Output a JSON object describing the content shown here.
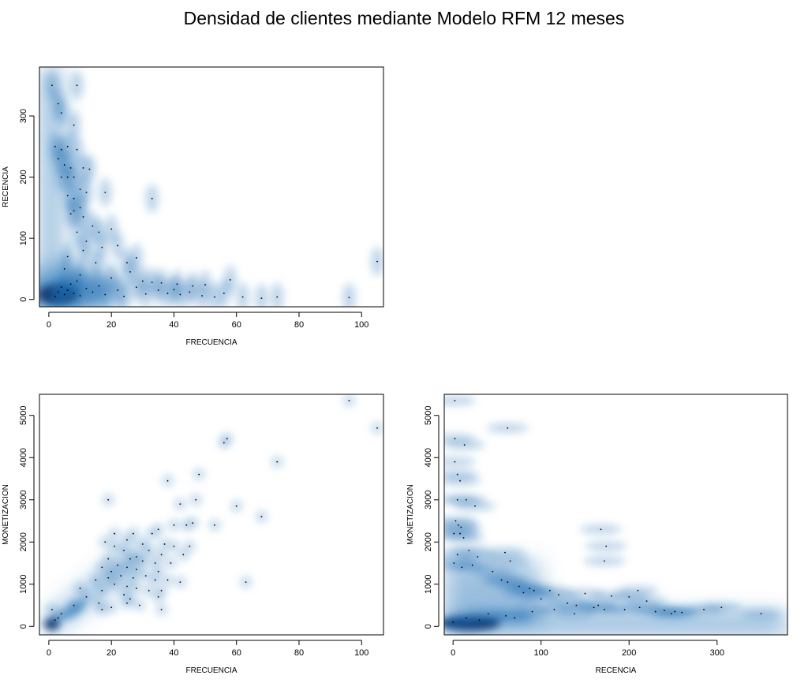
{
  "title": "Densidad de clientes mediante Modelo RFM 12 meses",
  "colors": {
    "density_dark": "#08306b",
    "density_mid": "#2171b5",
    "density_light": "#c6dbef",
    "point": "#000000"
  },
  "chart_data": [
    {
      "type": "scatter",
      "style": "smoothed-density",
      "xlabel": "FRECUENCIA",
      "ylabel": "RECENCIA",
      "xlim": [
        -3,
        107
      ],
      "ylim": [
        -12,
        380
      ],
      "xticks": [
        0,
        20,
        40,
        60,
        80,
        100
      ],
      "yticks": [
        0,
        100,
        200,
        300
      ],
      "points": [
        [
          1,
          350
        ],
        [
          3,
          320
        ],
        [
          4,
          305
        ],
        [
          9,
          350
        ],
        [
          8,
          285
        ],
        [
          2,
          250
        ],
        [
          4,
          245
        ],
        [
          6,
          250
        ],
        [
          9,
          245
        ],
        [
          3,
          230
        ],
        [
          5,
          220
        ],
        [
          7,
          215
        ],
        [
          11,
          215
        ],
        [
          13,
          213
        ],
        [
          6,
          200
        ],
        [
          8,
          200
        ],
        [
          4,
          200
        ],
        [
          10,
          180
        ],
        [
          12,
          175
        ],
        [
          18,
          175
        ],
        [
          6,
          170
        ],
        [
          8,
          165
        ],
        [
          33,
          165
        ],
        [
          10,
          150
        ],
        [
          8,
          145
        ],
        [
          11,
          135
        ],
        [
          7,
          140
        ],
        [
          14,
          120
        ],
        [
          16,
          110
        ],
        [
          9,
          110
        ],
        [
          20,
          115
        ],
        [
          12,
          95
        ],
        [
          17,
          85
        ],
        [
          22,
          88
        ],
        [
          11,
          80
        ],
        [
          6,
          70
        ],
        [
          15,
          60
        ],
        [
          25,
          60
        ],
        [
          28,
          68
        ],
        [
          5,
          50
        ],
        [
          10,
          40
        ],
        [
          20,
          35
        ],
        [
          26,
          45
        ],
        [
          30,
          30
        ],
        [
          33,
          28
        ],
        [
          36,
          27
        ],
        [
          41,
          25
        ],
        [
          46,
          22
        ],
        [
          50,
          24
        ],
        [
          58,
          32
        ],
        [
          35,
          15
        ],
        [
          38,
          10
        ],
        [
          42,
          8
        ],
        [
          45,
          12
        ],
        [
          49,
          6
        ],
        [
          53,
          4
        ],
        [
          56,
          10
        ],
        [
          62,
          4
        ],
        [
          68,
          2
        ],
        [
          73,
          4
        ],
        [
          96,
          3
        ],
        [
          105,
          62
        ],
        [
          2,
          5
        ],
        [
          3,
          12
        ],
        [
          4,
          20
        ],
        [
          5,
          8
        ],
        [
          6,
          15
        ],
        [
          7,
          25
        ],
        [
          8,
          10
        ],
        [
          9,
          30
        ],
        [
          10,
          6
        ],
        [
          12,
          18
        ],
        [
          14,
          12
        ],
        [
          16,
          22
        ],
        [
          18,
          8
        ],
        [
          22,
          15
        ],
        [
          24,
          5
        ],
        [
          28,
          20
        ],
        [
          31,
          9
        ],
        [
          40,
          16
        ]
      ]
    },
    {
      "type": "scatter",
      "style": "smoothed-density",
      "xlabel": "FRECUENCIA",
      "ylabel": "MONETIZACION",
      "xlim": [
        -3,
        107
      ],
      "ylim": [
        -200,
        5500
      ],
      "xticks": [
        0,
        20,
        40,
        60,
        80,
        100
      ],
      "yticks": [
        0,
        1000,
        2000,
        3000,
        4000,
        5000
      ],
      "points": [
        [
          96,
          5350
        ],
        [
          105,
          4700
        ],
        [
          57,
          4450
        ],
        [
          56,
          4350
        ],
        [
          73,
          3900
        ],
        [
          38,
          3450
        ],
        [
          48,
          3600
        ],
        [
          19,
          3000
        ],
        [
          47,
          3000
        ],
        [
          42,
          2900
        ],
        [
          60,
          2850
        ],
        [
          68,
          2600
        ],
        [
          53,
          2400
        ],
        [
          44,
          2400
        ],
        [
          46,
          2450
        ],
        [
          40,
          2400
        ],
        [
          35,
          2300
        ],
        [
          33,
          2200
        ],
        [
          27,
          2200
        ],
        [
          21,
          2200
        ],
        [
          25,
          2050
        ],
        [
          18,
          2000
        ],
        [
          21,
          1900
        ],
        [
          30,
          1950
        ],
        [
          37,
          1950
        ],
        [
          40,
          1900
        ],
        [
          45,
          1900
        ],
        [
          24,
          1800
        ],
        [
          32,
          1800
        ],
        [
          36,
          1700
        ],
        [
          43,
          1700
        ],
        [
          28,
          1650
        ],
        [
          19,
          1600
        ],
        [
          26,
          1600
        ],
        [
          30,
          1550
        ],
        [
          34,
          1500
        ],
        [
          39,
          1500
        ],
        [
          22,
          1450
        ],
        [
          17,
          1400
        ],
        [
          25,
          1400
        ],
        [
          28,
          1350
        ],
        [
          35,
          1300
        ],
        [
          20,
          1300
        ],
        [
          31,
          1200
        ],
        [
          23,
          1200
        ],
        [
          19,
          1150
        ],
        [
          27,
          1150
        ],
        [
          15,
          1100
        ],
        [
          34,
          1100
        ],
        [
          38,
          1100
        ],
        [
          42,
          1050
        ],
        [
          63,
          1050
        ],
        [
          21,
          1000
        ],
        [
          25,
          950
        ],
        [
          28,
          900
        ],
        [
          32,
          850
        ],
        [
          17,
          850
        ],
        [
          36,
          850
        ],
        [
          24,
          750
        ],
        [
          35,
          700
        ],
        [
          26,
          650
        ],
        [
          16,
          550
        ],
        [
          25,
          550
        ],
        [
          20,
          450
        ],
        [
          17,
          400
        ],
        [
          36,
          400
        ],
        [
          29,
          500
        ],
        [
          10,
          900
        ],
        [
          1,
          400
        ],
        [
          4,
          300
        ],
        [
          8,
          500
        ],
        [
          12,
          700
        ],
        [
          3,
          200
        ],
        [
          2,
          150
        ]
      ]
    },
    {
      "type": "scatter",
      "style": "smoothed-density",
      "xlabel": "RECENCIA",
      "ylabel": "MONETIZACION",
      "xlim": [
        -10,
        380
      ],
      "ylim": [
        -200,
        5500
      ],
      "xticks": [
        0,
        100,
        200,
        300
      ],
      "yticks": [
        0,
        1000,
        2000,
        3000,
        4000,
        5000
      ],
      "points": [
        [
          2,
          5350
        ],
        [
          62,
          4700
        ],
        [
          2,
          4450
        ],
        [
          13,
          4300
        ],
        [
          2,
          3900
        ],
        [
          5,
          3600
        ],
        [
          8,
          3450
        ],
        [
          5,
          3000
        ],
        [
          15,
          3000
        ],
        [
          25,
          2850
        ],
        [
          3,
          2500
        ],
        [
          6,
          2400
        ],
        [
          9,
          2350
        ],
        [
          168,
          2300
        ],
        [
          1,
          2200
        ],
        [
          8,
          2200
        ],
        [
          12,
          2100
        ],
        [
          174,
          1900
        ],
        [
          18,
          1800
        ],
        [
          59,
          1750
        ],
        [
          5,
          1700
        ],
        [
          28,
          1650
        ],
        [
          65,
          1550
        ],
        [
          172,
          1550
        ],
        [
          1,
          1500
        ],
        [
          22,
          1450
        ],
        [
          10,
          1400
        ],
        [
          45,
          1300
        ],
        [
          55,
          1100
        ],
        [
          62,
          1050
        ],
        [
          75,
          950
        ],
        [
          87,
          900
        ],
        [
          92,
          850
        ],
        [
          110,
          850
        ],
        [
          80,
          800
        ],
        [
          150,
          780
        ],
        [
          120,
          750
        ],
        [
          180,
          720
        ],
        [
          200,
          700
        ],
        [
          210,
          850
        ],
        [
          100,
          650
        ],
        [
          130,
          550
        ],
        [
          140,
          500
        ],
        [
          160,
          450
        ],
        [
          172,
          400
        ],
        [
          195,
          400
        ],
        [
          230,
          350
        ],
        [
          240,
          380
        ],
        [
          248,
          300
        ],
        [
          252,
          350
        ],
        [
          260,
          330
        ],
        [
          285,
          400
        ],
        [
          305,
          450
        ],
        [
          350,
          300
        ],
        [
          0,
          100
        ],
        [
          15,
          200
        ],
        [
          30,
          150
        ],
        [
          40,
          300
        ],
        [
          60,
          250
        ],
        [
          70,
          200
        ],
        [
          90,
          350
        ],
        [
          115,
          400
        ],
        [
          138,
          300
        ],
        [
          165,
          500
        ],
        [
          212,
          450
        ],
        [
          220,
          600
        ]
      ]
    }
  ]
}
